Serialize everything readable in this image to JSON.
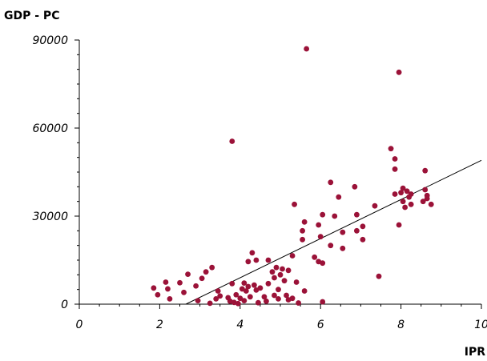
{
  "chart_data": {
    "type": "scatter",
    "ylabel": "GDP - PC",
    "xlabel": "IPR",
    "xlim": [
      0,
      10
    ],
    "ylim": [
      0,
      90000
    ],
    "x_ticks": [
      0,
      2,
      4,
      6,
      8,
      10
    ],
    "x_tick_labels": [
      "0",
      "2",
      "4",
      "6",
      "8",
      "10"
    ],
    "y_ticks": [
      0,
      30000,
      60000,
      90000
    ],
    "y_tick_labels": [
      "0",
      "30000",
      "60000",
      "90000"
    ],
    "grid": false,
    "point_color": "#9b1238",
    "line_color": "#000000",
    "trendline": {
      "x": [
        2.65,
        10
      ],
      "y": [
        0,
        49000
      ]
    },
    "points": [
      {
        "x": 1.85,
        "y": 5500
      },
      {
        "x": 1.95,
        "y": 3200
      },
      {
        "x": 2.15,
        "y": 7500
      },
      {
        "x": 2.2,
        "y": 5200
      },
      {
        "x": 2.25,
        "y": 1800
      },
      {
        "x": 2.5,
        "y": 7300
      },
      {
        "x": 2.6,
        "y": 4000
      },
      {
        "x": 2.7,
        "y": 10200
      },
      {
        "x": 2.9,
        "y": 6200
      },
      {
        "x": 2.95,
        "y": 1200
      },
      {
        "x": 3.05,
        "y": 8800
      },
      {
        "x": 3.15,
        "y": 11000
      },
      {
        "x": 3.25,
        "y": 300
      },
      {
        "x": 3.3,
        "y": 12500
      },
      {
        "x": 3.4,
        "y": 1800
      },
      {
        "x": 3.45,
        "y": 4500
      },
      {
        "x": 3.5,
        "y": 2800
      },
      {
        "x": 3.7,
        "y": 2200
      },
      {
        "x": 3.75,
        "y": 1000
      },
      {
        "x": 3.8,
        "y": 7000
      },
      {
        "x": 3.8,
        "y": 55500
      },
      {
        "x": 3.85,
        "y": 600
      },
      {
        "x": 3.9,
        "y": 3200
      },
      {
        "x": 3.95,
        "y": 200
      },
      {
        "x": 4.0,
        "y": 2000
      },
      {
        "x": 4.05,
        "y": 5200
      },
      {
        "x": 4.1,
        "y": 7200
      },
      {
        "x": 4.1,
        "y": 1200
      },
      {
        "x": 4.15,
        "y": 4500
      },
      {
        "x": 4.2,
        "y": 14500
      },
      {
        "x": 4.2,
        "y": 6000
      },
      {
        "x": 4.25,
        "y": 2500
      },
      {
        "x": 4.3,
        "y": 17500
      },
      {
        "x": 4.35,
        "y": 6500
      },
      {
        "x": 4.4,
        "y": 4800
      },
      {
        "x": 4.4,
        "y": 15000
      },
      {
        "x": 4.45,
        "y": 500
      },
      {
        "x": 4.5,
        "y": 5500
      },
      {
        "x": 4.6,
        "y": 2500
      },
      {
        "x": 4.65,
        "y": 1000
      },
      {
        "x": 4.7,
        "y": 7000
      },
      {
        "x": 4.7,
        "y": 15000
      },
      {
        "x": 4.8,
        "y": 11000
      },
      {
        "x": 4.85,
        "y": 9000
      },
      {
        "x": 4.85,
        "y": 3000
      },
      {
        "x": 4.9,
        "y": 12500
      },
      {
        "x": 4.95,
        "y": 5000
      },
      {
        "x": 4.95,
        "y": 1800
      },
      {
        "x": 5.0,
        "y": 10000
      },
      {
        "x": 5.05,
        "y": 12000
      },
      {
        "x": 5.1,
        "y": 8000
      },
      {
        "x": 5.15,
        "y": 3000
      },
      {
        "x": 5.2,
        "y": 11500
      },
      {
        "x": 5.2,
        "y": 1500
      },
      {
        "x": 5.3,
        "y": 2000
      },
      {
        "x": 5.3,
        "y": 16500
      },
      {
        "x": 5.35,
        "y": 34000
      },
      {
        "x": 5.4,
        "y": 7500
      },
      {
        "x": 5.45,
        "y": 400
      },
      {
        "x": 5.55,
        "y": 22000
      },
      {
        "x": 5.55,
        "y": 25000
      },
      {
        "x": 5.6,
        "y": 28000
      },
      {
        "x": 5.6,
        "y": 4500
      },
      {
        "x": 5.65,
        "y": 87000
      },
      {
        "x": 5.85,
        "y": 16000
      },
      {
        "x": 5.95,
        "y": 14500
      },
      {
        "x": 5.95,
        "y": 27000
      },
      {
        "x": 6.0,
        "y": 23000
      },
      {
        "x": 6.05,
        "y": 30500
      },
      {
        "x": 6.05,
        "y": 14000
      },
      {
        "x": 6.05,
        "y": 800
      },
      {
        "x": 6.25,
        "y": 41500
      },
      {
        "x": 6.25,
        "y": 20000
      },
      {
        "x": 6.35,
        "y": 30000
      },
      {
        "x": 6.45,
        "y": 36500
      },
      {
        "x": 6.55,
        "y": 24500
      },
      {
        "x": 6.55,
        "y": 19000
      },
      {
        "x": 6.85,
        "y": 40000
      },
      {
        "x": 6.9,
        "y": 30500
      },
      {
        "x": 6.9,
        "y": 25000
      },
      {
        "x": 7.05,
        "y": 26500
      },
      {
        "x": 7.05,
        "y": 22000
      },
      {
        "x": 7.35,
        "y": 33500
      },
      {
        "x": 7.45,
        "y": 9500
      },
      {
        "x": 7.75,
        "y": 53000
      },
      {
        "x": 7.85,
        "y": 49500
      },
      {
        "x": 7.85,
        "y": 46000
      },
      {
        "x": 7.85,
        "y": 37500
      },
      {
        "x": 7.95,
        "y": 79000
      },
      {
        "x": 7.95,
        "y": 27000
      },
      {
        "x": 8.0,
        "y": 38000
      },
      {
        "x": 8.05,
        "y": 39500
      },
      {
        "x": 8.05,
        "y": 35000
      },
      {
        "x": 8.1,
        "y": 33000
      },
      {
        "x": 8.15,
        "y": 38500
      },
      {
        "x": 8.2,
        "y": 36500
      },
      {
        "x": 8.25,
        "y": 37500
      },
      {
        "x": 8.25,
        "y": 34000
      },
      {
        "x": 8.55,
        "y": 35000
      },
      {
        "x": 8.6,
        "y": 45500
      },
      {
        "x": 8.6,
        "y": 39000
      },
      {
        "x": 8.65,
        "y": 37000
      },
      {
        "x": 8.65,
        "y": 36000
      },
      {
        "x": 8.75,
        "y": 34000
      }
    ]
  }
}
